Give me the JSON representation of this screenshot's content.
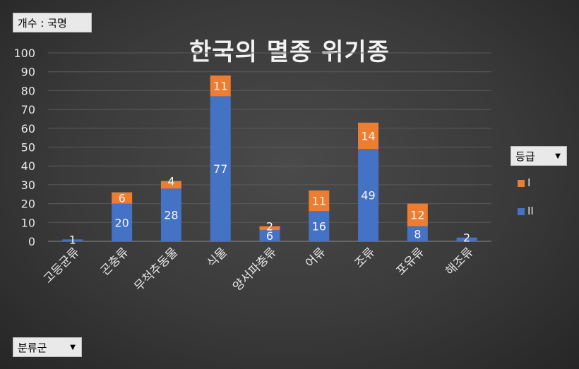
{
  "pivot": {
    "value_field": "개수 : 국명",
    "row_field": "분류군",
    "legend_field": "등급"
  },
  "chart_data": {
    "type": "bar",
    "stacked": true,
    "title": "한국의 멸종 위기종",
    "categories": [
      "고등균류",
      "곤충류",
      "무척추동물",
      "식물",
      "양서파충류",
      "어류",
      "조류",
      "포유류",
      "해조류"
    ],
    "series": [
      {
        "name": "II",
        "color": "#4472C4",
        "values": [
          1,
          20,
          28,
          77,
          6,
          16,
          49,
          8,
          2
        ]
      },
      {
        "name": "I",
        "color": "#ED7D31",
        "values": [
          null,
          6,
          4,
          11,
          2,
          11,
          14,
          12,
          null
        ]
      }
    ],
    "legend_order": [
      "I",
      "II"
    ],
    "ylim": [
      0,
      100
    ],
    "yticks": [
      "0",
      "10",
      "20",
      "30",
      "40",
      "50",
      "60",
      "70",
      "80",
      "90",
      "100"
    ],
    "grid": true,
    "legend_position": "right"
  }
}
